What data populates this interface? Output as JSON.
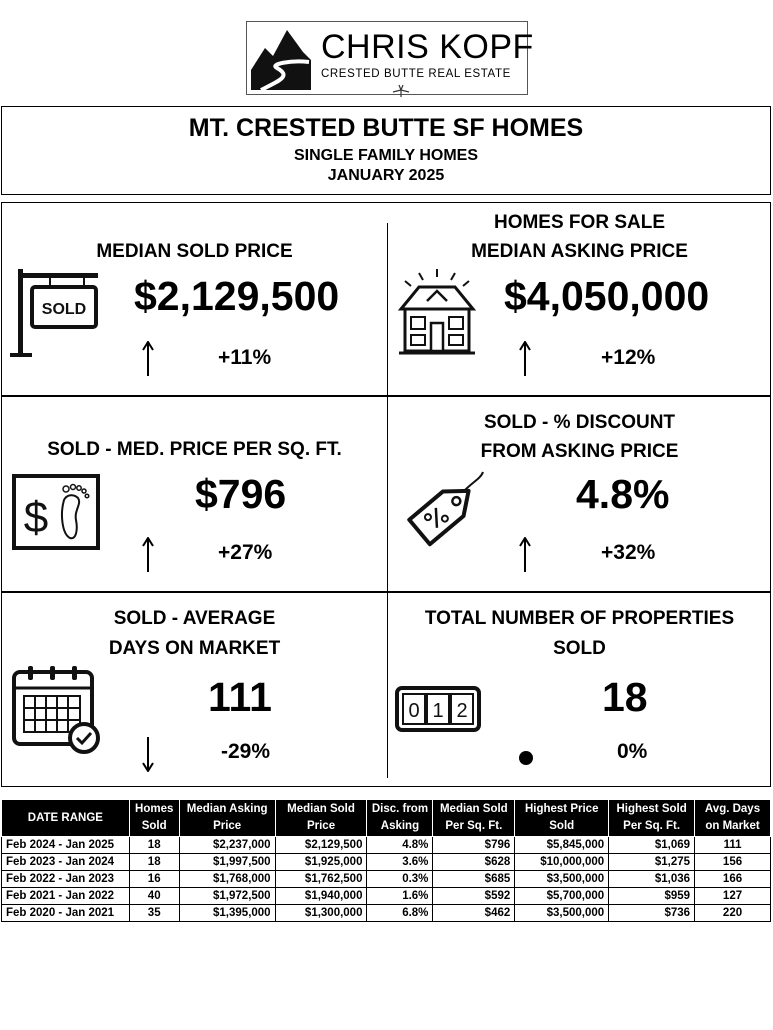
{
  "logo": {
    "name": "CHRIS KOPF",
    "tagline": "CRESTED BUTTE REAL ESTATE"
  },
  "header": {
    "title": "MT. CRESTED BUTTE SF HOMES",
    "subtitle": "SINGLE FAMILY HOMES",
    "period": "JANUARY 2025"
  },
  "metrics": [
    {
      "head1": "MEDIAN SOLD PRICE",
      "head2": "",
      "value": "$2,129,500",
      "change": "+11%",
      "trend": "up",
      "icon": "sold-sign-icon"
    },
    {
      "head1": "HOMES FOR SALE",
      "head2": "MEDIAN ASKING PRICE",
      "value": "$4,050,000",
      "change": "+12%",
      "trend": "up",
      "icon": "house-icon"
    },
    {
      "head1": "SOLD - MED. PRICE PER SQ. FT.",
      "head2": "",
      "value": "$796",
      "change": "+27%",
      "trend": "up",
      "icon": "dollar-footprint-icon"
    },
    {
      "head1": "SOLD - % DISCOUNT",
      "head2": "FROM ASKING PRICE",
      "value": "4.8%",
      "change": "+32%",
      "trend": "up",
      "icon": "discount-tag-icon"
    },
    {
      "head1": "SOLD - AVERAGE",
      "head2": "DAYS ON MARKET",
      "value": "111",
      "change": "-29%",
      "trend": "down",
      "icon": "calendar-check-icon"
    },
    {
      "head1": "TOTAL NUMBER OF PROPERTIES",
      "head2": "SOLD",
      "value": "18",
      "change": "0%",
      "trend": "flat",
      "icon": "counter-icon"
    }
  ],
  "table": {
    "headers": [
      [
        "DATE RANGE",
        ""
      ],
      [
        "Homes",
        "Sold"
      ],
      [
        "Median Asking",
        "Price"
      ],
      [
        "Median Sold",
        "Price"
      ],
      [
        "Disc. from",
        "Asking"
      ],
      [
        "Median Sold",
        "Per Sq. Ft."
      ],
      [
        "Highest Price",
        "Sold"
      ],
      [
        "Highest Sold",
        "Per Sq. Ft."
      ],
      [
        "Avg. Days",
        "on Market"
      ]
    ],
    "rows": [
      [
        "Feb 2024 - Jan 2025",
        "18",
        "$2,237,000",
        "$2,129,500",
        "4.8%",
        "$796",
        "$5,845,000",
        "$1,069",
        "111"
      ],
      [
        "Feb 2023 - Jan 2024",
        "18",
        "$1,997,500",
        "$1,925,000",
        "3.6%",
        "$628",
        "$10,000,000",
        "$1,275",
        "156"
      ],
      [
        "Feb 2022 - Jan 2023",
        "16",
        "$1,768,000",
        "$1,762,500",
        "0.3%",
        "$685",
        "$3,500,000",
        "$1,036",
        "166"
      ],
      [
        "Feb 2021 - Jan 2022",
        "40",
        "$1,972,500",
        "$1,940,000",
        "1.6%",
        "$592",
        "$5,700,000",
        "$959",
        "127"
      ],
      [
        "Feb 2020 - Jan 2021",
        "35",
        "$1,395,000",
        "$1,300,000",
        "6.8%",
        "$462",
        "$3,500,000",
        "$736",
        "220"
      ]
    ]
  },
  "icons": {
    "sold_sign_text": "SOLD",
    "counter_digits": [
      "0",
      "1",
      "2"
    ]
  }
}
